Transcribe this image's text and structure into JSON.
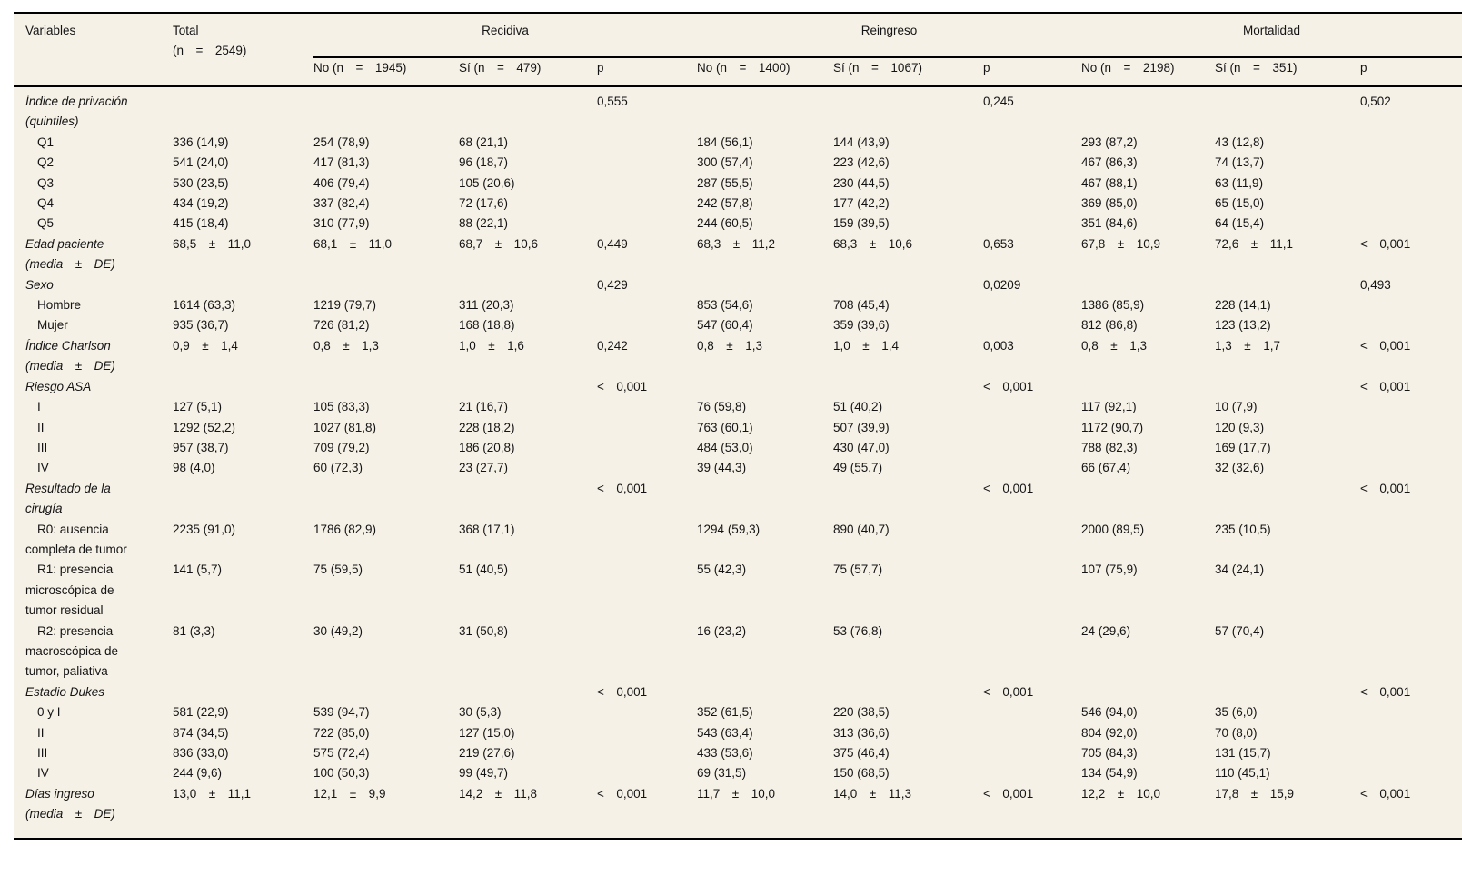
{
  "table": {
    "header": {
      "variables_label": "Variables",
      "total_label": "Total\n(n = 2549)",
      "p_label": "p",
      "groups": [
        {
          "label": "Recidiva",
          "no": "No (n = 1945)",
          "si": "Sí (n = 479)",
          "p": "p"
        },
        {
          "label": "Reingreso",
          "no": "No (n = 1400)",
          "si": "Sí (n = 1067)",
          "p": "p"
        },
        {
          "label": "Mortalidad",
          "no": "No (n = 2198)",
          "si": "Sí (n = 351)",
          "p": "p"
        }
      ]
    },
    "rows": [
      {
        "label": "Índice de privación (quintiles)",
        "variant": "category",
        "cells": [
          "",
          "",
          "",
          "0,555",
          "",
          "",
          "0,245",
          "",
          "",
          "0,502"
        ]
      },
      {
        "label": "Q1",
        "variant": "sub",
        "cells": [
          "336 (14,9)",
          "254 (78,9)",
          "68 (21,1)",
          "",
          "184 (56,1)",
          "144 (43,9)",
          "",
          "293 (87,2)",
          "43 (12,8)",
          ""
        ]
      },
      {
        "label": "Q2",
        "variant": "sub",
        "cells": [
          "541 (24,0)",
          "417 (81,3)",
          "96 (18,7)",
          "",
          "300 (57,4)",
          "223 (42,6)",
          "",
          "467 (86,3)",
          "74 (13,7)",
          ""
        ]
      },
      {
        "label": "Q3",
        "variant": "sub",
        "cells": [
          "530 (23,5)",
          "406 (79,4)",
          "105 (20,6)",
          "",
          "287 (55,5)",
          "230 (44,5)",
          "",
          "467 (88,1)",
          "63 (11,9)",
          ""
        ]
      },
      {
        "label": "Q4",
        "variant": "sub",
        "cells": [
          "434 (19,2)",
          "337 (82,4)",
          "72 (17,6)",
          "",
          "242 (57,8)",
          "177 (42,2)",
          "",
          "369 (85,0)",
          "65 (15,0)",
          ""
        ]
      },
      {
        "label": "Q5",
        "variant": "sub",
        "cells": [
          "415 (18,4)",
          "310 (77,9)",
          "88 (22,1)",
          "",
          "244 (60,5)",
          "159 (39,5)",
          "",
          "351 (84,6)",
          "64 (15,4)",
          ""
        ]
      },
      {
        "label": "Edad paciente (media ± DE)",
        "variant": "category",
        "cells": [
          "68,5 ± 11,0",
          "68,1 ± 11,0",
          "68,7 ± 10,6",
          "0,449",
          "68,3 ± 11,2",
          "68,3 ± 10,6",
          "0,653",
          "67,8 ± 10,9",
          "72,6 ± 11,1",
          "< 0,001"
        ]
      },
      {
        "label": "Sexo",
        "variant": "category",
        "cells": [
          "",
          "",
          "",
          "0,429",
          "",
          "",
          "0,0209",
          "",
          "",
          "0,493"
        ]
      },
      {
        "label": "Hombre",
        "variant": "sub",
        "cells": [
          "1614 (63,3)",
          "1219 (79,7)",
          "311 (20,3)",
          "",
          "853 (54,6)",
          "708 (45,4)",
          "",
          "1386 (85,9)",
          "228 (14,1)",
          ""
        ]
      },
      {
        "label": "Mujer",
        "variant": "sub",
        "cells": [
          "935 (36,7)",
          "726 (81,2)",
          "168 (18,8)",
          "",
          "547 (60,4)",
          "359 (39,6)",
          "",
          "812 (86,8)",
          "123 (13,2)",
          ""
        ]
      },
      {
        "label": "Índice Charlson (media ± DE)",
        "variant": "category",
        "cells": [
          "0,9 ± 1,4",
          "0,8 ± 1,3",
          "1,0 ± 1,6",
          "0,242",
          "0,8 ± 1,3",
          "1,0 ± 1,4",
          "0,003",
          "0,8 ± 1,3",
          "1,3 ± 1,7",
          "< 0,001"
        ]
      },
      {
        "label": "Riesgo ASA",
        "variant": "category",
        "cells": [
          "",
          "",
          "",
          "< 0,001",
          "",
          "",
          "< 0,001",
          "",
          "",
          "< 0,001"
        ]
      },
      {
        "label": "I",
        "variant": "sub",
        "cells": [
          "127 (5,1)",
          "105 (83,3)",
          "21 (16,7)",
          "",
          "76 (59,8)",
          "51 (40,2)",
          "",
          "117 (92,1)",
          "10 (7,9)",
          ""
        ]
      },
      {
        "label": "II",
        "variant": "sub",
        "cells": [
          "1292 (52,2)",
          "1027 (81,8)",
          "228 (18,2)",
          "",
          "763 (60,1)",
          "507 (39,9)",
          "",
          "1172 (90,7)",
          "120 (9,3)",
          ""
        ]
      },
      {
        "label": "III",
        "variant": "sub",
        "cells": [
          "957 (38,7)",
          "709 (79,2)",
          "186 (20,8)",
          "",
          "484 (53,0)",
          "430 (47,0)",
          "",
          "788 (82,3)",
          "169 (17,7)",
          ""
        ]
      },
      {
        "label": "IV",
        "variant": "sub",
        "cells": [
          "98 (4,0)",
          "60 (72,3)",
          "23 (27,7)",
          "",
          "39 (44,3)",
          "49 (55,7)",
          "",
          "66 (67,4)",
          "32 (32,6)",
          ""
        ]
      },
      {
        "label": "Resultado de la cirugía",
        "variant": "category",
        "cells": [
          "",
          "",
          "",
          "< 0,001",
          "",
          "",
          "< 0,001",
          "",
          "",
          "< 0,001"
        ]
      },
      {
        "label": "R0: ausencia completa de tumor",
        "variant": "sub",
        "cells": [
          "2235 (91,0)",
          "1786 (82,9)",
          "368 (17,1)",
          "",
          "1294 (59,3)",
          "890 (40,7)",
          "",
          "2000 (89,5)",
          "235 (10,5)",
          ""
        ]
      },
      {
        "label": "R1: presencia microscópica de tumor residual",
        "variant": "sub",
        "cells": [
          "141 (5,7)",
          "75 (59,5)",
          "51 (40,5)",
          "",
          "55 (42,3)",
          "75 (57,7)",
          "",
          "107 (75,9)",
          "34 (24,1)",
          ""
        ]
      },
      {
        "label": "R2: presencia macroscópica de tumor, paliativa",
        "variant": "sub",
        "cells": [
          "81 (3,3)",
          "30 (49,2)",
          "31 (50,8)",
          "",
          "16 (23,2)",
          "53 (76,8)",
          "",
          "24 (29,6)",
          "57 (70,4)",
          ""
        ]
      },
      {
        "label": "Estadio Dukes",
        "variant": "category",
        "cells": [
          "",
          "",
          "",
          "< 0,001",
          "",
          "",
          "< 0,001",
          "",
          "",
          "< 0,001"
        ]
      },
      {
        "label": "0 y I",
        "variant": "sub",
        "cells": [
          "581 (22,9)",
          "539 (94,7)",
          "30 (5,3)",
          "",
          "352 (61,5)",
          "220 (38,5)",
          "",
          "546 (94,0)",
          "35 (6,0)",
          ""
        ]
      },
      {
        "label": "II",
        "variant": "sub",
        "cells": [
          "874 (34,5)",
          "722 (85,0)",
          "127 (15,0)",
          "",
          "543 (63,4)",
          "313 (36,6)",
          "",
          "804 (92,0)",
          "70 (8,0)",
          ""
        ]
      },
      {
        "label": "III",
        "variant": "sub",
        "cells": [
          "836 (33,0)",
          "575 (72,4)",
          "219 (27,6)",
          "",
          "433 (53,6)",
          "375 (46,4)",
          "",
          "705 (84,3)",
          "131 (15,7)",
          ""
        ]
      },
      {
        "label": "IV",
        "variant": "sub",
        "cells": [
          "244 (9,6)",
          "100 (50,3)",
          "99 (49,7)",
          "",
          "69 (31,5)",
          "150 (68,5)",
          "",
          "134 (54,9)",
          "110 (45,1)",
          ""
        ]
      },
      {
        "label": "Días ingreso (media ± DE)",
        "variant": "category",
        "cells": [
          "13,0 ± 11,1",
          "12,1 ± 9,9",
          "14,2 ± 11,8",
          "< 0,001",
          "11,7 ± 10,0",
          "14,0 ± 11,3",
          "< 0,001",
          "12,2 ± 10,0",
          "17,8 ± 15,9",
          "< 0,001"
        ]
      }
    ]
  }
}
